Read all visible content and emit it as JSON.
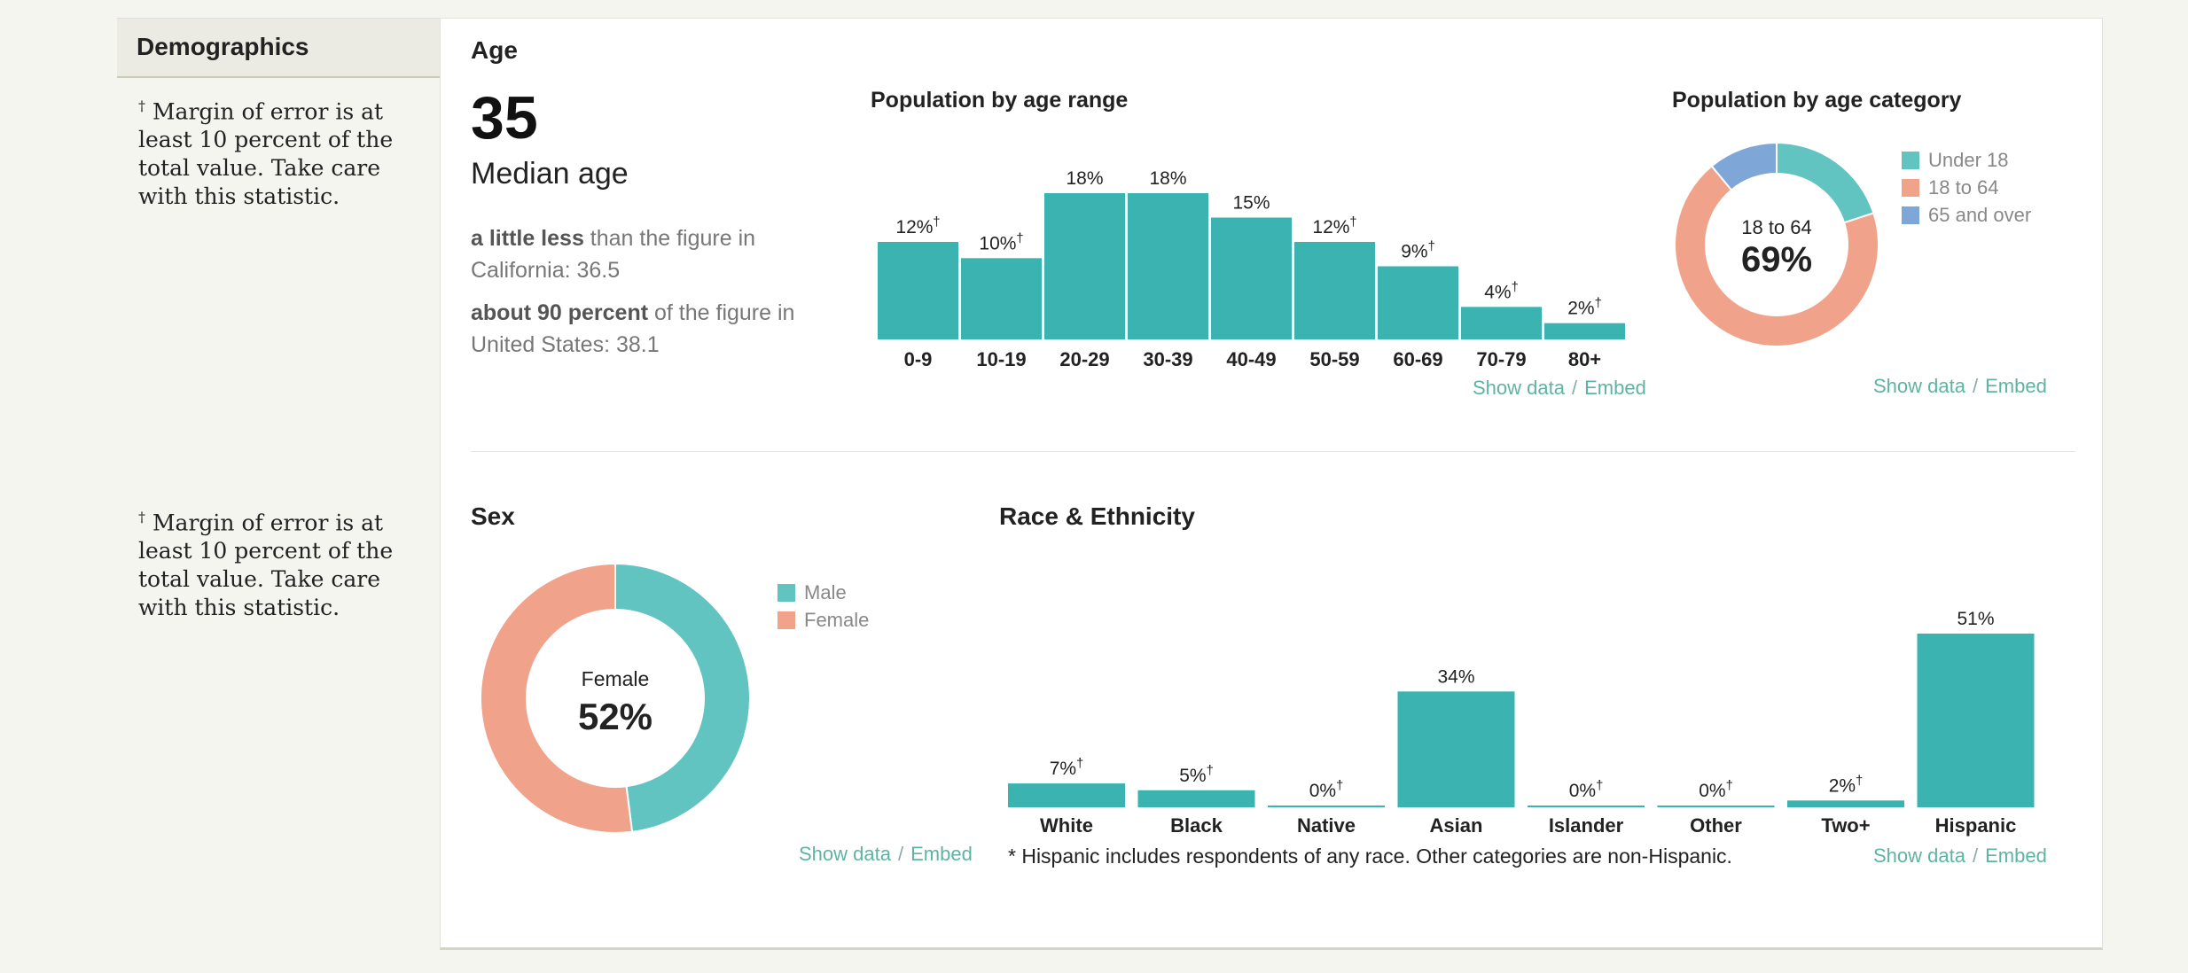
{
  "sidebar": {
    "title": "Demographics",
    "notes": [
      {
        "dagger": "†",
        "text": "Margin of error is at least 10 percent of the total value. Take care with this statistic."
      },
      {
        "dagger": "†",
        "text": "Margin of error is at least 10 percent of the total value. Take care with this statistic."
      }
    ]
  },
  "age": {
    "title": "Age",
    "median_value": "35",
    "median_label": "Median age",
    "compare": [
      {
        "bold": "a little less",
        "rest": " than the figure in California: 36.5"
      },
      {
        "bold": "about 90 percent",
        "rest": " of the figure in United States: 38.1"
      }
    ]
  },
  "links": {
    "show_data": "Show data",
    "separator": "/",
    "embed": "Embed"
  },
  "colors": {
    "teal": "#3bb3b0",
    "salmon": "#f0a38a",
    "blue": "#7ea7d8",
    "light_teal": "#62c4c1",
    "link": "#5fb3a3"
  },
  "sex": {
    "title": "Sex"
  },
  "race": {
    "title": "Race & Ethnicity",
    "footnote": "* Hispanic includes respondents of any race. Other categories are non-Hispanic."
  },
  "chart_data": [
    {
      "id": "age_range",
      "type": "bar",
      "title": "Population by age range",
      "categories": [
        "0-9",
        "10-19",
        "20-29",
        "30-39",
        "40-49",
        "50-59",
        "60-69",
        "70-79",
        "80+"
      ],
      "values": [
        12,
        10,
        18,
        18,
        15,
        12,
        9,
        4,
        2
      ],
      "labels": [
        "12%",
        "10%",
        "18%",
        "18%",
        "15%",
        "12%",
        "9%",
        "4%",
        "2%"
      ],
      "dagger": [
        true,
        true,
        false,
        false,
        false,
        true,
        true,
        true,
        true
      ],
      "ylim": [
        0,
        18
      ],
      "color": "#3bb3b0"
    },
    {
      "id": "age_category",
      "type": "pie",
      "title": "Population by age category",
      "categories": [
        "Under 18",
        "18 to 64",
        "65 and over"
      ],
      "values": [
        20,
        69,
        11
      ],
      "colors": [
        "#62c4c1",
        "#f0a38a",
        "#7ea7d8"
      ],
      "center_label": "18 to 64",
      "center_value": "69%",
      "legend": "right"
    },
    {
      "id": "sex",
      "type": "pie",
      "categories": [
        "Male",
        "Female"
      ],
      "values": [
        48,
        52
      ],
      "colors": [
        "#62c4c1",
        "#f0a38a"
      ],
      "center_label": "Female",
      "center_value": "52%",
      "legend": "right"
    },
    {
      "id": "race",
      "type": "bar",
      "categories": [
        "White",
        "Black",
        "Native",
        "Asian",
        "Islander",
        "Other",
        "Two+",
        "Hispanic"
      ],
      "values": [
        7,
        5,
        0,
        34,
        0,
        0,
        2,
        51
      ],
      "labels": [
        "7%",
        "5%",
        "0%",
        "34%",
        "0%",
        "0%",
        "2%",
        "51%"
      ],
      "dagger": [
        true,
        true,
        true,
        false,
        true,
        true,
        true,
        false
      ],
      "ylim": [
        0,
        51
      ],
      "color": "#3bb3b0"
    }
  ]
}
